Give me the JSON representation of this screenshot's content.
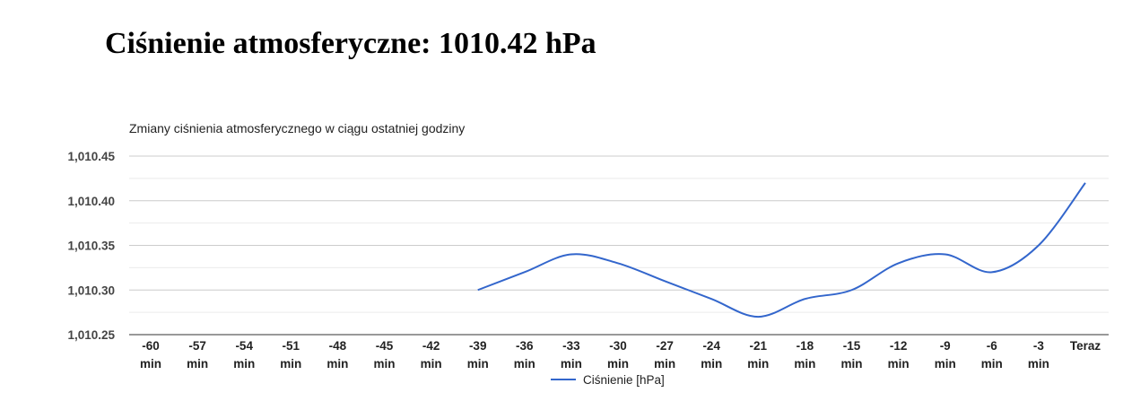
{
  "header": {
    "title": "Ciśnienie atmosferyczne: 1010.42 hPa"
  },
  "colors": {
    "series": "#3366cc",
    "grid": "#cccccc",
    "grid_minor": "#ebebeb"
  },
  "chart_data": {
    "type": "line",
    "title": "Zmiany ciśnienia atmosferycznego w ciągu ostatniej godziny",
    "xlabel": "",
    "ylabel": "",
    "categories": [
      "-60 min",
      "-57 min",
      "-54 min",
      "-51 min",
      "-48 min",
      "-45 min",
      "-42 min",
      "-39 min",
      "-36 min",
      "-33 min",
      "-30 min",
      "-27 min",
      "-24 min",
      "-21 min",
      "-18 min",
      "-15 min",
      "-12 min",
      "-9 min",
      "-6 min",
      "-3 min",
      "Teraz"
    ],
    "yticks": [
      "1,010.25",
      "1,010.30",
      "1,010.35",
      "1,010.40",
      "1,010.45"
    ],
    "ylim": [
      1010.25,
      1010.45
    ],
    "grid": true,
    "legend_position": "bottom",
    "series": [
      {
        "name": "Ciśnienie [hPa]",
        "values": [
          null,
          null,
          null,
          null,
          null,
          null,
          null,
          1010.3,
          1010.32,
          1010.34,
          1010.33,
          1010.31,
          1010.29,
          1010.27,
          1010.29,
          1010.3,
          1010.33,
          1010.34,
          1010.32,
          1010.35,
          1010.42
        ]
      }
    ]
  }
}
